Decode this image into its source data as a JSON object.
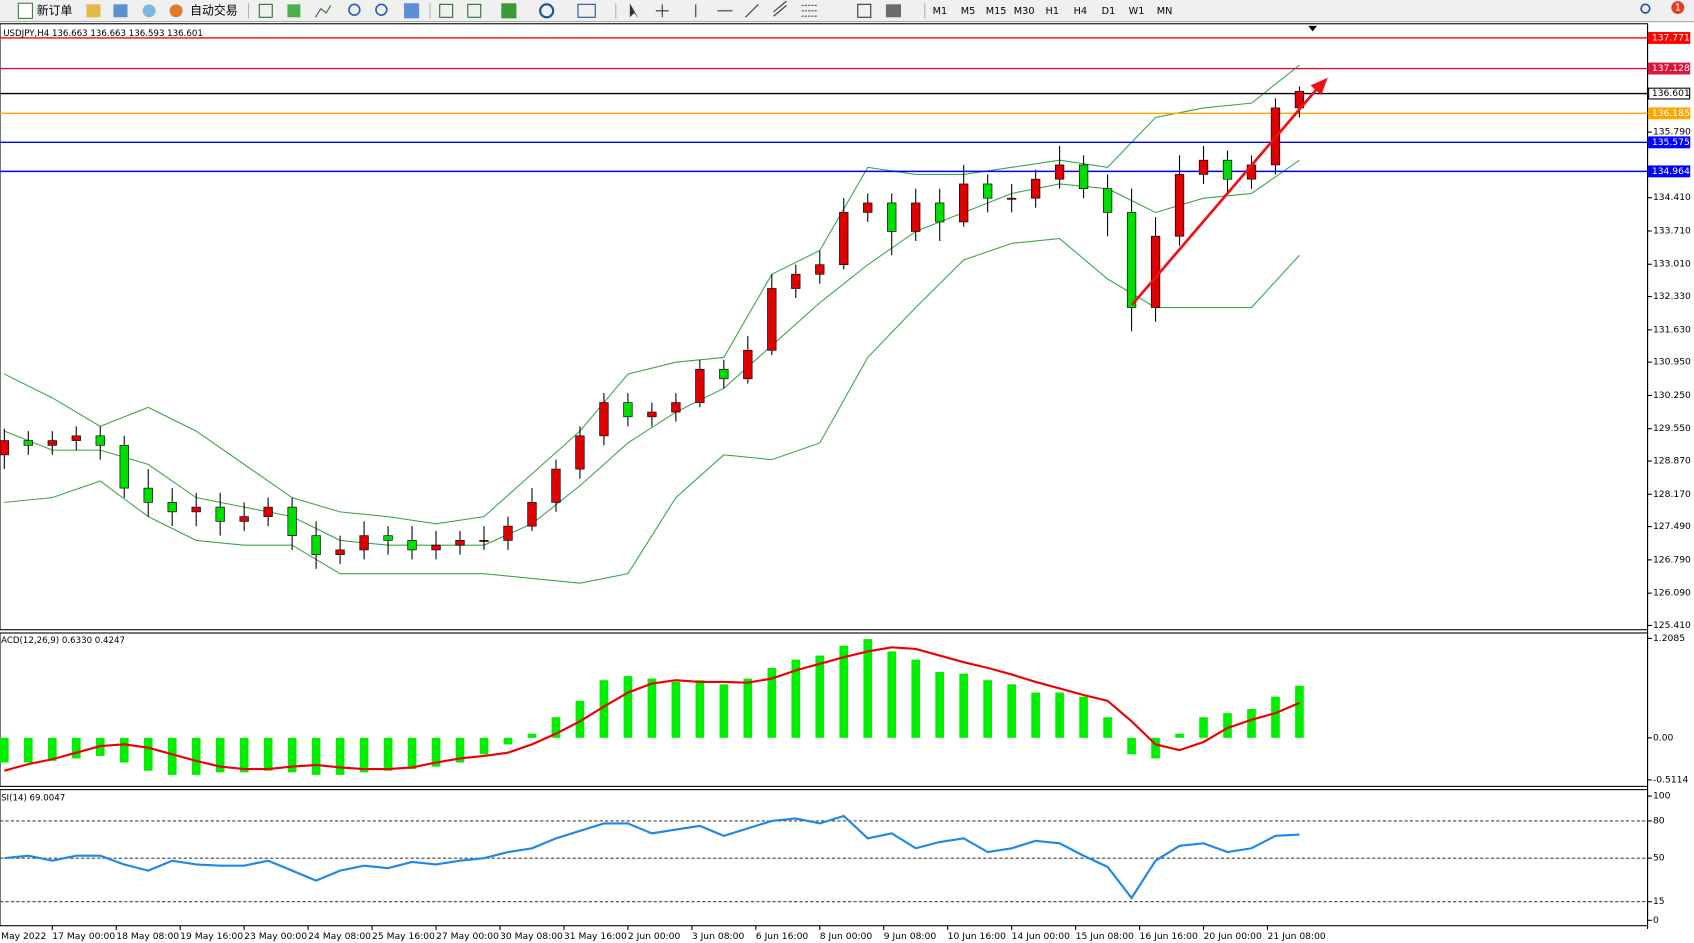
{
  "toolbar": {
    "buttons": [
      "新订单",
      "自动交易"
    ],
    "timeframes": [
      "M1",
      "M5",
      "M15",
      "M30",
      "H1",
      "H4",
      "D1",
      "W1",
      "MN"
    ],
    "badge": "1"
  },
  "chart_data": [
    {
      "type": "candlestick",
      "title": "USDJPY,H4 136.663 136.663 136.593 136.601",
      "x": [
        0,
        3,
        6,
        9,
        12,
        15,
        18,
        21,
        24,
        27,
        30,
        33,
        36,
        39,
        42,
        45,
        48,
        51,
        54,
        57,
        60,
        63,
        66,
        69,
        72,
        75,
        78,
        81,
        84,
        87,
        90,
        93,
        96,
        99,
        102,
        105,
        108,
        111,
        114,
        117,
        120,
        123,
        126,
        129,
        132,
        135,
        138,
        141,
        144,
        147,
        150,
        153,
        156,
        159,
        162
      ],
      "open": [
        129.0,
        129.3,
        129.2,
        129.3,
        129.4,
        129.2,
        128.3,
        128.0,
        127.8,
        127.9,
        127.6,
        127.7,
        127.9,
        127.3,
        126.9,
        127.0,
        127.3,
        127.2,
        127.0,
        127.1,
        127.2,
        127.2,
        127.5,
        128.0,
        128.7,
        129.4,
        130.1,
        129.8,
        129.9,
        130.1,
        130.8,
        130.6,
        131.2,
        132.5,
        132.8,
        133.0,
        134.1,
        134.3,
        133.7,
        134.3,
        133.9,
        134.7,
        134.4,
        134.4,
        134.8,
        135.1,
        134.6,
        134.1,
        132.1,
        133.6,
        134.9,
        135.2,
        134.8,
        135.1,
        136.3
      ],
      "high": [
        129.55,
        129.5,
        129.5,
        129.6,
        129.6,
        129.4,
        128.7,
        128.3,
        128.2,
        128.2,
        128.0,
        128.1,
        128.1,
        127.6,
        127.3,
        127.6,
        127.5,
        127.5,
        127.4,
        127.4,
        127.5,
        127.7,
        128.3,
        128.9,
        129.6,
        130.3,
        130.3,
        130.1,
        130.3,
        131.0,
        131.0,
        131.5,
        132.8,
        133.0,
        133.3,
        134.4,
        134.5,
        134.5,
        134.6,
        134.6,
        135.1,
        134.9,
        134.7,
        135.0,
        135.5,
        135.3,
        134.9,
        134.6,
        134.0,
        135.3,
        135.5,
        135.4,
        135.3,
        136.5,
        136.75
      ],
      "low": [
        128.7,
        129.0,
        129.0,
        129.1,
        128.9,
        128.1,
        127.7,
        127.5,
        127.5,
        127.3,
        127.4,
        127.5,
        127.0,
        126.6,
        126.7,
        126.8,
        126.9,
        126.8,
        126.8,
        126.9,
        127.0,
        127.0,
        127.4,
        127.8,
        128.5,
        129.2,
        129.6,
        129.6,
        129.7,
        130.0,
        130.4,
        130.5,
        131.1,
        132.3,
        132.6,
        132.9,
        133.9,
        133.2,
        133.5,
        133.5,
        133.8,
        134.1,
        134.1,
        134.2,
        134.6,
        134.4,
        133.6,
        131.6,
        131.8,
        133.4,
        134.7,
        134.5,
        134.6,
        134.9,
        136.1
      ],
      "close": [
        129.3,
        129.2,
        129.3,
        129.4,
        129.2,
        128.3,
        128.0,
        127.8,
        127.9,
        127.6,
        127.7,
        127.9,
        127.3,
        126.9,
        127.0,
        127.3,
        127.2,
        127.0,
        127.1,
        127.2,
        127.2,
        127.5,
        128.0,
        128.7,
        129.4,
        130.1,
        129.8,
        129.9,
        130.1,
        130.8,
        130.6,
        131.2,
        132.5,
        132.8,
        133.0,
        134.1,
        134.3,
        133.7,
        134.3,
        133.9,
        134.7,
        134.4,
        134.4,
        134.8,
        135.1,
        134.6,
        134.1,
        132.1,
        133.6,
        134.9,
        135.2,
        134.8,
        135.1,
        136.3,
        136.65
      ],
      "up_color": "#e00000",
      "down_color": "#00dd00",
      "bands": {
        "color": "#3aa64a",
        "x": [
          0,
          6,
          12,
          18,
          24,
          30,
          36,
          42,
          48,
          54,
          60,
          66,
          72,
          78,
          84,
          90,
          96,
          102,
          108,
          114,
          120,
          126,
          132,
          138,
          144,
          150,
          156,
          162
        ],
        "upper": [
          130.7,
          130.2,
          129.6,
          130.0,
          129.5,
          128.8,
          128.1,
          127.8,
          127.7,
          127.55,
          127.7,
          128.6,
          129.5,
          130.7,
          130.95,
          131.05,
          132.8,
          133.3,
          135.05,
          134.9,
          134.9,
          135.05,
          135.2,
          135.05,
          136.1,
          136.3,
          136.4,
          137.2
        ],
        "middle": [
          129.5,
          129.1,
          129.1,
          128.8,
          128.1,
          127.9,
          127.7,
          127.2,
          127.1,
          127.1,
          127.1,
          127.55,
          128.35,
          129.25,
          129.9,
          130.4,
          131.3,
          132.2,
          133.0,
          133.7,
          134.1,
          134.5,
          134.7,
          134.6,
          134.1,
          134.4,
          134.5,
          135.2
        ],
        "lower": [
          128.0,
          128.1,
          128.45,
          127.7,
          127.2,
          127.1,
          127.1,
          126.5,
          126.5,
          126.5,
          126.5,
          126.4,
          126.3,
          126.5,
          128.1,
          129.0,
          128.9,
          129.25,
          131.05,
          132.1,
          133.1,
          133.45,
          133.55,
          132.7,
          132.1,
          132.1,
          132.1,
          133.2
        ]
      },
      "levels": [
        {
          "value": 137.771,
          "color": "#ff0000"
        },
        {
          "value": 137.128,
          "color": "#dc143c"
        },
        {
          "value": 136.601,
          "color": "#000000"
        },
        {
          "value": 136.185,
          "color": "#ffa500"
        },
        {
          "value": 135.575,
          "color": "#0000ff"
        },
        {
          "value": 134.964,
          "color": "#0000ff"
        }
      ],
      "xlim": [
        -0.54,
        205.54
      ],
      "ylim": [
        125.32,
        138.07
      ],
      "yticks": [
        {
          "value": 135.79,
          "label": "135.790"
        },
        {
          "value": 134.41,
          "label": "134.410"
        },
        {
          "value": 133.71,
          "label": "133.710"
        },
        {
          "value": 133.01,
          "label": "133.010"
        },
        {
          "value": 132.33,
          "label": "132.330"
        },
        {
          "value": 131.63,
          "label": "131.630"
        },
        {
          "value": 130.95,
          "label": "130.950"
        },
        {
          "value": 130.25,
          "label": "130.250"
        },
        {
          "value": 129.55,
          "label": "129.550"
        },
        {
          "value": 128.87,
          "label": "128.870"
        },
        {
          "value": 128.17,
          "label": "128.170"
        },
        {
          "value": 127.49,
          "label": "127.490"
        },
        {
          "value": 126.79,
          "label": "126.790"
        },
        {
          "value": 126.09,
          "label": "126.090"
        },
        {
          "value": 125.41,
          "label": "125.410"
        }
      ],
      "xticks": [
        {
          "value": -2,
          "label": "May 2022"
        },
        {
          "value": 6,
          "label": "17 May 00:00"
        },
        {
          "value": 14,
          "label": "18 May 08:00"
        },
        {
          "value": 22,
          "label": "19 May 16:00"
        },
        {
          "value": 30,
          "label": "23 May 00:00"
        },
        {
          "value": 38,
          "label": "24 May 08:00"
        },
        {
          "value": 46,
          "label": "25 May 16:00"
        },
        {
          "value": 54,
          "label": "27 May 00:00"
        },
        {
          "value": 62,
          "label": "30 May 08:00"
        },
        {
          "value": 70,
          "label": "31 May 16:00"
        },
        {
          "value": 78,
          "label": "2 Jun 00:00"
        },
        {
          "value": 86,
          "label": "3 Jun 08:00"
        },
        {
          "value": 94,
          "label": "6 Jun 16:00"
        },
        {
          "value": 102,
          "label": "8 Jun 00:00"
        },
        {
          "value": 110,
          "label": "9 Jun 08:00"
        },
        {
          "value": 118,
          "label": "10 Jun 16:00"
        },
        {
          "value": 126,
          "label": "14 Jun 00:00"
        },
        {
          "value": 134,
          "label": "15 Jun 08:00"
        },
        {
          "value": 142,
          "label": "16 Jun 16:00"
        },
        {
          "value": 150,
          "label": "20 Jun 00:00"
        },
        {
          "value": 158,
          "label": "21 Jun 08:00"
        }
      ]
    },
    {
      "type": "bar",
      "title": "ACD(12,26,9) 0.6330 0.4247",
      "x": [
        0,
        3,
        6,
        9,
        12,
        15,
        18,
        21,
        24,
        27,
        30,
        33,
        36,
        39,
        42,
        45,
        48,
        51,
        54,
        57,
        60,
        63,
        66,
        69,
        72,
        75,
        78,
        81,
        84,
        87,
        90,
        93,
        96,
        99,
        102,
        105,
        108,
        111,
        114,
        117,
        120,
        123,
        126,
        129,
        132,
        135,
        138,
        141,
        144,
        147,
        150,
        153,
        156,
        159,
        162
      ],
      "values": [
        -0.3,
        -0.3,
        -0.28,
        -0.25,
        -0.22,
        -0.3,
        -0.4,
        -0.45,
        -0.45,
        -0.42,
        -0.42,
        -0.4,
        -0.42,
        -0.45,
        -0.45,
        -0.42,
        -0.4,
        -0.38,
        -0.35,
        -0.3,
        -0.2,
        -0.08,
        0.05,
        0.25,
        0.45,
        0.7,
        0.75,
        0.72,
        0.68,
        0.7,
        0.65,
        0.72,
        0.85,
        0.95,
        1.0,
        1.12,
        1.2,
        1.05,
        0.95,
        0.8,
        0.78,
        0.7,
        0.65,
        0.55,
        0.55,
        0.5,
        0.25,
        -0.2,
        -0.25,
        0.05,
        0.25,
        0.3,
        0.35,
        0.5,
        0.633
      ],
      "color": "#00ee00",
      "signal_values": [
        -0.4,
        -0.32,
        -0.26,
        -0.18,
        -0.1,
        -0.08,
        -0.12,
        -0.2,
        -0.28,
        -0.35,
        -0.38,
        -0.38,
        -0.35,
        -0.33,
        -0.36,
        -0.38,
        -0.38,
        -0.36,
        -0.3,
        -0.25,
        -0.22,
        -0.18,
        -0.08,
        0.05,
        0.2,
        0.38,
        0.55,
        0.66,
        0.7,
        0.68,
        0.68,
        0.67,
        0.72,
        0.82,
        0.9,
        0.98,
        1.05,
        1.1,
        1.08,
        1.0,
        0.92,
        0.85,
        0.77,
        0.68,
        0.6,
        0.52,
        0.45,
        0.2,
        -0.08,
        -0.15,
        -0.05,
        0.12,
        0.22,
        0.3,
        0.4247
      ],
      "signal_color": "#ee0000",
      "xlim": [
        -0.54,
        205.54
      ],
      "ylim": [
        -0.5114,
        1.2085
      ],
      "yticks": [
        1.2085,
        {
          "value": 0,
          "label": "0.00"
        },
        -0.5114
      ]
    },
    {
      "type": "line",
      "title": "SI(14) 69.0047",
      "x": [
        0,
        3,
        6,
        9,
        12,
        15,
        18,
        21,
        24,
        27,
        30,
        33,
        36,
        39,
        42,
        45,
        48,
        51,
        54,
        57,
        60,
        63,
        66,
        69,
        72,
        75,
        78,
        81,
        84,
        87,
        90,
        93,
        96,
        99,
        102,
        105,
        108,
        111,
        114,
        117,
        120,
        123,
        126,
        129,
        132,
        135,
        138,
        141,
        144,
        147,
        150,
        153,
        156,
        159,
        162
      ],
      "values": [
        50,
        52,
        48,
        52,
        52,
        45,
        40,
        48,
        45,
        44,
        44,
        48,
        40,
        32,
        40,
        44,
        42,
        47,
        45,
        48,
        50,
        55,
        58,
        66,
        72,
        78,
        78,
        70,
        73,
        76,
        68,
        74,
        80,
        82,
        78,
        84,
        66,
        70,
        58,
        63,
        66,
        55,
        58,
        64,
        62,
        52,
        43,
        18,
        48,
        60,
        62,
        55,
        58,
        68,
        69.0047
      ],
      "color": "#1e88e5",
      "levels": [
        80,
        50,
        15
      ],
      "xlim": [
        -0.54,
        205.54
      ],
      "ylim": [
        0,
        100
      ],
      "yticks": [
        100,
        80,
        50,
        15,
        0
      ]
    }
  ]
}
